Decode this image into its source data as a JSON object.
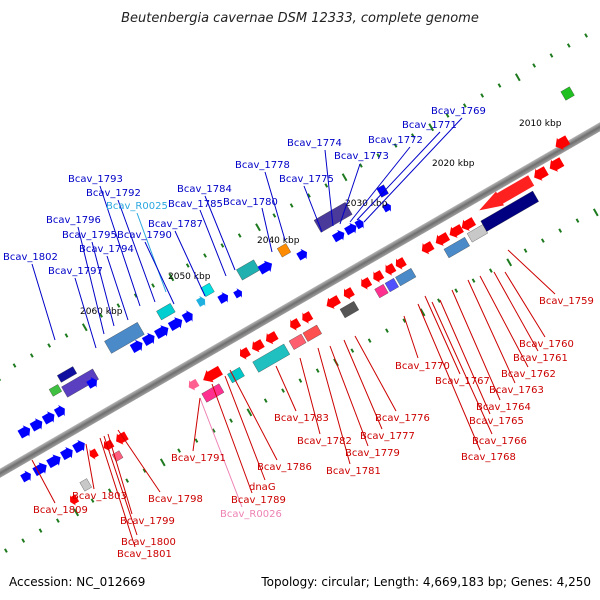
{
  "title": "Beutenbergia cavernae DSM 12333, complete genome",
  "accession": "Accession: NC_012669",
  "topology": "Topology: circular; Length: 4,669,183 bp; Genes: 4,250",
  "colors": {
    "upper_label": "#0000c8",
    "lower_label": "#cc0000",
    "rna_upper": "#2aa7df",
    "rna_lower": "#ee82b4",
    "backbone": "#7a7a7a",
    "tick": "#1e7a1e"
  },
  "kbp_labels": [
    "2010 kbp",
    "2020 kbp",
    "2030 kbp",
    "2040 kbp",
    "2050 kbp",
    "2060 kbp"
  ],
  "upper_labels": [
    {
      "text": "Bcav_1769"
    },
    {
      "text": "Bcav_1771"
    },
    {
      "text": "Bcav_1772"
    },
    {
      "text": "Bcav_1773"
    },
    {
      "text": "Bcav_1774"
    },
    {
      "text": "Bcav_1775"
    },
    {
      "text": "Bcav_1778"
    },
    {
      "text": "Bcav_1780"
    },
    {
      "text": "Bcav_1784"
    },
    {
      "text": "Bcav_1785"
    },
    {
      "text": "Bcav_1787"
    },
    {
      "text": "Bcav_R0025"
    },
    {
      "text": "Bcav_1790"
    },
    {
      "text": "Bcav_1792"
    },
    {
      "text": "Bcav_1793"
    },
    {
      "text": "Bcav_1794"
    },
    {
      "text": "Bcav_1795"
    },
    {
      "text": "Bcav_1796"
    },
    {
      "text": "Bcav_1797"
    },
    {
      "text": "Bcav_1802"
    }
  ],
  "lower_labels": [
    {
      "text": "Bcav_1759"
    },
    {
      "text": "Bcav_1760"
    },
    {
      "text": "Bcav_1761"
    },
    {
      "text": "Bcav_1762"
    },
    {
      "text": "Bcav_1763"
    },
    {
      "text": "Bcav_1764"
    },
    {
      "text": "Bcav_1765"
    },
    {
      "text": "Bcav_1766"
    },
    {
      "text": "Bcav_1767"
    },
    {
      "text": "Bcav_1768"
    },
    {
      "text": "Bcav_1770"
    },
    {
      "text": "Bcav_1776"
    },
    {
      "text": "Bcav_1777"
    },
    {
      "text": "Bcav_1779"
    },
    {
      "text": "Bcav_1781"
    },
    {
      "text": "Bcav_1782"
    },
    {
      "text": "Bcav_1783"
    },
    {
      "text": "Bcav_1786"
    },
    {
      "text": "dnaG"
    },
    {
      "text": "Bcav_1789"
    },
    {
      "text": "Bcav_R0026"
    },
    {
      "text": "Bcav_1791"
    },
    {
      "text": "Bcav_1798"
    },
    {
      "text": "Bcav_1799"
    },
    {
      "text": "Bcav_1800"
    },
    {
      "text": "Bcav_1801"
    },
    {
      "text": "Bcav_1803"
    },
    {
      "text": "Bcav_1809"
    }
  ]
}
